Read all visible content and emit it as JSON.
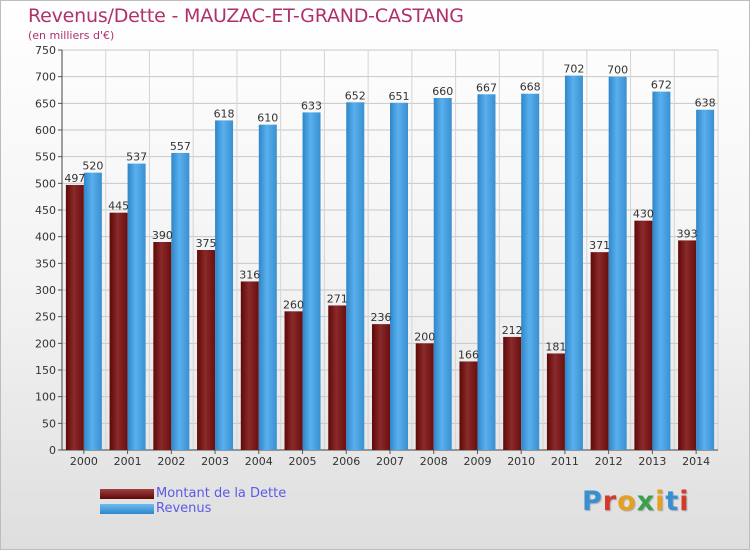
{
  "header": {
    "title": "Revenus/Dette - MAUZAC-ET-GRAND-CASTANG",
    "subtitle": "(en milliers d'€)"
  },
  "colors": {
    "title": "#b0306a",
    "dette": "#7a1010",
    "revenus": "#3d97d8",
    "legend_text": "#5a5ae6"
  },
  "legend": {
    "dette_label": "Montant de la Dette",
    "revenus_label": "Revenus"
  },
  "logo": {
    "text": "Proxiti"
  },
  "chart_data": {
    "type": "bar",
    "categories": [
      "2000",
      "2001",
      "2002",
      "2003",
      "2004",
      "2005",
      "2006",
      "2007",
      "2008",
      "2009",
      "2010",
      "2011",
      "2012",
      "2013",
      "2014"
    ],
    "series": [
      {
        "name": "Montant de la Dette",
        "values": [
          497,
          445,
          390,
          375,
          316,
          260,
          271,
          236,
          200,
          166,
          212,
          181,
          371,
          430,
          393
        ],
        "labels": [
          "497",
          "445",
          "390",
          "375",
          "316",
          "260",
          "271",
          "236",
          "200",
          "166",
          "212",
          "181",
          "371",
          "430",
          "393"
        ]
      },
      {
        "name": "Revenus",
        "values": [
          520,
          537,
          557,
          618,
          610,
          633,
          652,
          651,
          660,
          667,
          668,
          702,
          700,
          672,
          638
        ],
        "labels": [
          "520",
          "537",
          "557",
          "618",
          "610",
          "633",
          "652",
          "651",
          "660",
          "667",
          "668",
          "702",
          "700",
          "672",
          "638"
        ]
      }
    ],
    "yticks": [
      "0",
      "50",
      "100",
      "150",
      "200",
      "250",
      "300",
      "350",
      "400",
      "450",
      "500",
      "550",
      "600",
      "650",
      "700",
      "750"
    ],
    "ylim": [
      0,
      750
    ],
    "grid": true,
    "legend_position": "bottom-left"
  }
}
